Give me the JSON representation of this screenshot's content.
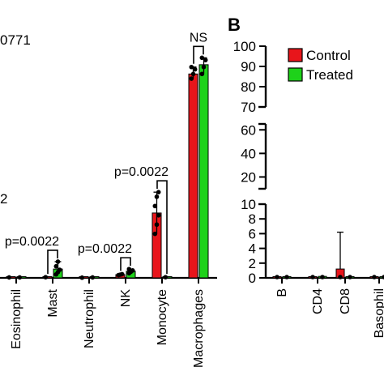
{
  "chart_data": [
    {
      "panel": "A",
      "type": "bar",
      "fragment_texts": {
        "top_left": "0771",
        "mid_left": "2"
      },
      "categories": [
        "Eosinophil",
        "Mast",
        "Neutrophil",
        "NK",
        "Monocyte",
        "Macrophages"
      ],
      "category_labels": [
        "Eosinophil",
        "Mast",
        "Neutrophil",
        "NK",
        "Monocyte",
        "Macrophages"
      ],
      "series": [
        {
          "name": "Control",
          "color": "#e8151b",
          "values": [
            0.2,
            0.3,
            0.1,
            1.4,
            28,
            88
          ]
        },
        {
          "name": "Treated",
          "color": "#1ed21a",
          "values": [
            0.2,
            3.8,
            0.2,
            2.9,
            0.3,
            92
          ]
        }
      ],
      "points": {
        "Control": [
          [
            0.2
          ],
          [
            0.3
          ],
          [
            0.1
          ],
          [
            1.2,
            1.4,
            1.6
          ],
          [
            19,
            23,
            27,
            31,
            35,
            37
          ],
          [
            86,
            88,
            90,
            91
          ]
        ],
        "Treated": [
          [
            0.2
          ],
          [
            1.5,
            2.5,
            3.5,
            5,
            7
          ],
          [
            0.2
          ],
          [
            2.0,
            2.6,
            3.2,
            3.8
          ],
          [
            0.3
          ],
          [
            88,
            91,
            94,
            95
          ]
        ]
      },
      "ylim": [
        0,
        100
      ],
      "comparisons": [
        {
          "category": "Mast",
          "label": "p=0.0022"
        },
        {
          "category": "NK",
          "label": "p=0.0022"
        },
        {
          "category": "Monocyte",
          "label": "p=0.0022"
        },
        {
          "category": "Macrophages",
          "label": "NS"
        }
      ]
    },
    {
      "panel": "B",
      "type": "bar",
      "panel_label": "B",
      "categories": [
        "B",
        "CD4",
        "CD8",
        "Basophil"
      ],
      "category_labels": [
        "B",
        "CD4",
        "CD8",
        "Basophil"
      ],
      "y_segments": [
        {
          "range": [
            70,
            100
          ],
          "ticks": [
            70,
            80,
            90,
            100
          ]
        },
        {
          "range": [
            10,
            65
          ],
          "ticks": [
            20,
            40,
            60
          ]
        },
        {
          "range": [
            0,
            10
          ],
          "ticks": [
            0,
            2,
            4,
            6,
            8,
            10
          ]
        }
      ],
      "y_tick_labels": [
        "100",
        "90",
        "80",
        "70",
        "60",
        "40",
        "20",
        "10",
        "8",
        "6",
        "4",
        "2",
        "0"
      ],
      "series": [
        {
          "name": "Control",
          "color": "#e8151b",
          "values": [
            0.1,
            0.1,
            1.2,
            0.1
          ]
        },
        {
          "name": "Treated",
          "color": "#1ed21a",
          "values": [
            0.1,
            0.2,
            0.1,
            0.1
          ]
        }
      ],
      "error_upper": {
        "Control": [
          0,
          0,
          6.2,
          0
        ],
        "Treated": [
          0,
          0,
          0,
          0
        ]
      },
      "legend": {
        "position": "top-right",
        "entries": [
          "Control",
          "Treated"
        ]
      }
    }
  ]
}
